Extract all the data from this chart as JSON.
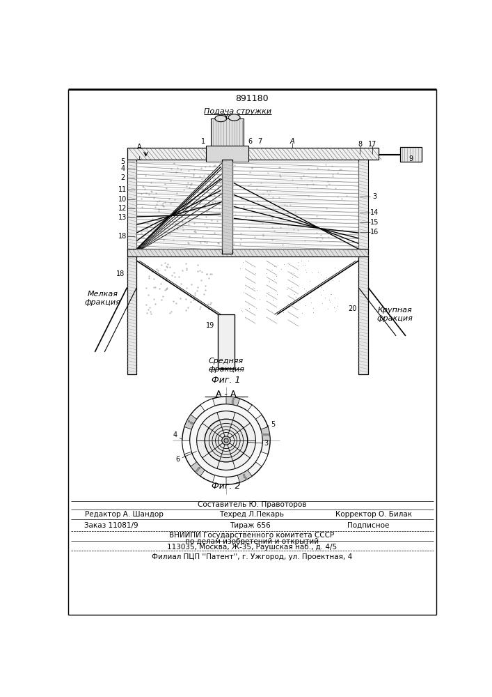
{
  "patent_number": "891180",
  "fig1_label": "Фиг. 1",
  "fig2_label": "Фиг. 2",
  "section_label": "А - А",
  "supply_label": "Подача стружки",
  "fine_label": "Мелкая\nфракция",
  "medium_label": "Средняя\nфракция",
  "coarse_label": "Крупная\nфракция",
  "editor_line": "Редактор А. Шандор",
  "composer_line": "Составитель Ю. Правоторов",
  "techred_line": "Техред Л.Пекарь",
  "corrector_line": "Корректор О. Билак",
  "order_line": "Заказ 11081/9",
  "tirazh_line": "Тираж 656",
  "podpisnoe_line": "Подписное",
  "vniip_line": "ВНИИПИ Государственного комитета СССР",
  "dela_line": "по делам изобретений и открытий",
  "address_line": "113035, Москва, Ж-35, Раушская наб., д. 4/5",
  "filial_line": "Филиал ПЦП ''Патент'', г. Ужгород, ул. Проектная, 4",
  "bg_color": "#ffffff"
}
